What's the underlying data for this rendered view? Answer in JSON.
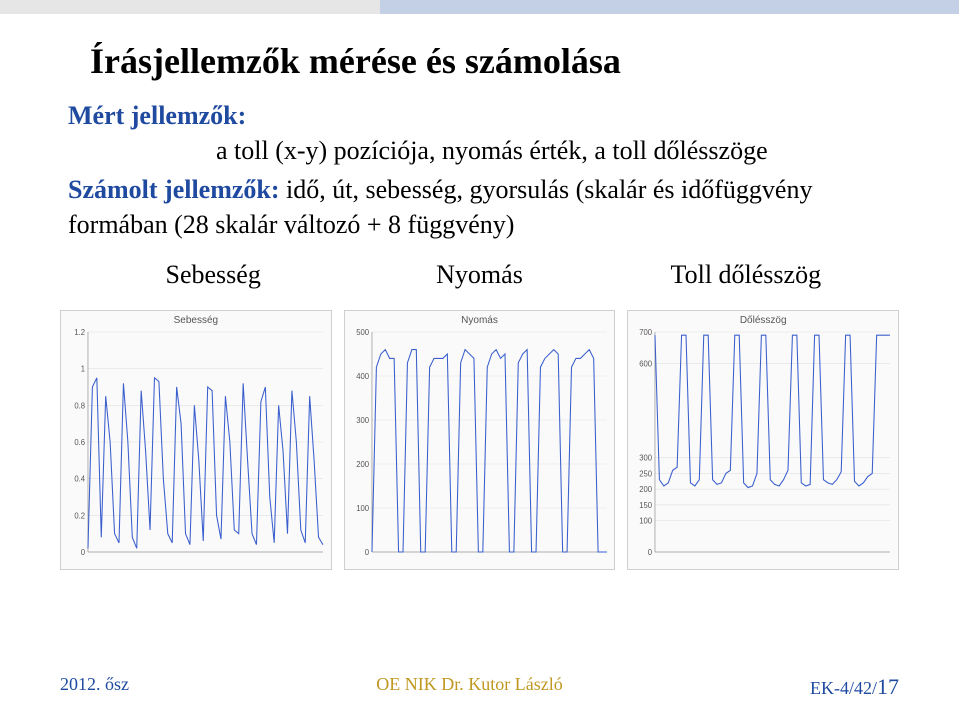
{
  "topbar": {
    "gray_color": "#e6e6e6",
    "blue_color": "#c3d0e6"
  },
  "title": "Írásjellemzők mérése és számolása",
  "measured": {
    "label": "Mért jellemzők:",
    "text": "a toll (x-y) pozíciója, nyomás érték, a toll dőlésszöge"
  },
  "computed": {
    "label": "Számolt jellemzők:",
    "text": "idő, út, sebesség,  gyorsulás (skalár és időfüggvény formában (28 skalár változó + 8 függvény)"
  },
  "chart_headers": [
    "Sebesség",
    "Nyomás",
    "Toll dőlésszög"
  ],
  "charts": {
    "line_color": "#3a5fcd",
    "grid_color": "#e0e0e0",
    "bg_color": "#fafafa",
    "sebesseg": {
      "title": "Sebesség",
      "ylim": [
        0,
        1.2
      ],
      "yticks": [
        0,
        0.2,
        0.4,
        0.6,
        0.8,
        1,
        1.2
      ],
      "values": [
        0.02,
        0.9,
        0.95,
        0.08,
        0.85,
        0.6,
        0.1,
        0.05,
        0.92,
        0.6,
        0.08,
        0.02,
        0.88,
        0.55,
        0.12,
        0.95,
        0.93,
        0.4,
        0.1,
        0.05,
        0.9,
        0.7,
        0.1,
        0.04,
        0.8,
        0.5,
        0.06,
        0.9,
        0.88,
        0.2,
        0.07,
        0.85,
        0.6,
        0.12,
        0.1,
        0.92,
        0.5,
        0.1,
        0.04,
        0.82,
        0.9,
        0.3,
        0.05,
        0.8,
        0.55,
        0.1,
        0.88,
        0.6,
        0.12,
        0.05,
        0.85,
        0.5,
        0.08,
        0.04
      ]
    },
    "nyomas": {
      "title": "Nyomás",
      "ylim": [
        0,
        500
      ],
      "yticks": [
        0,
        100,
        200,
        300,
        400,
        500
      ],
      "values": [
        0,
        420,
        450,
        460,
        440,
        440,
        0,
        0,
        430,
        460,
        460,
        0,
        0,
        420,
        440,
        440,
        440,
        450,
        0,
        0,
        430,
        460,
        450,
        440,
        0,
        0,
        420,
        450,
        460,
        440,
        450,
        0,
        0,
        430,
        450,
        460,
        0,
        0,
        420,
        440,
        450,
        460,
        450,
        0,
        0,
        420,
        440,
        440,
        450,
        460,
        440,
        0,
        0,
        0
      ]
    },
    "dolesszog": {
      "title": "Dőlésszög",
      "ylim": [
        0,
        700
      ],
      "yticks": [
        0,
        100,
        150,
        200,
        250,
        300,
        600,
        700
      ],
      "values": [
        690,
        230,
        210,
        220,
        260,
        270,
        690,
        690,
        220,
        210,
        230,
        690,
        690,
        230,
        215,
        220,
        250,
        260,
        690,
        690,
        220,
        205,
        210,
        250,
        690,
        690,
        230,
        215,
        210,
        230,
        260,
        690,
        690,
        220,
        210,
        215,
        690,
        690,
        230,
        220,
        215,
        230,
        255,
        690,
        690,
        225,
        210,
        220,
        240,
        250,
        690,
        690,
        690,
        690
      ]
    }
  },
  "footer": {
    "left": "2012. ősz",
    "center": "OE NIK  Dr. Kutor László",
    "right_prefix": "EK-4/42/",
    "right_page": "17"
  }
}
